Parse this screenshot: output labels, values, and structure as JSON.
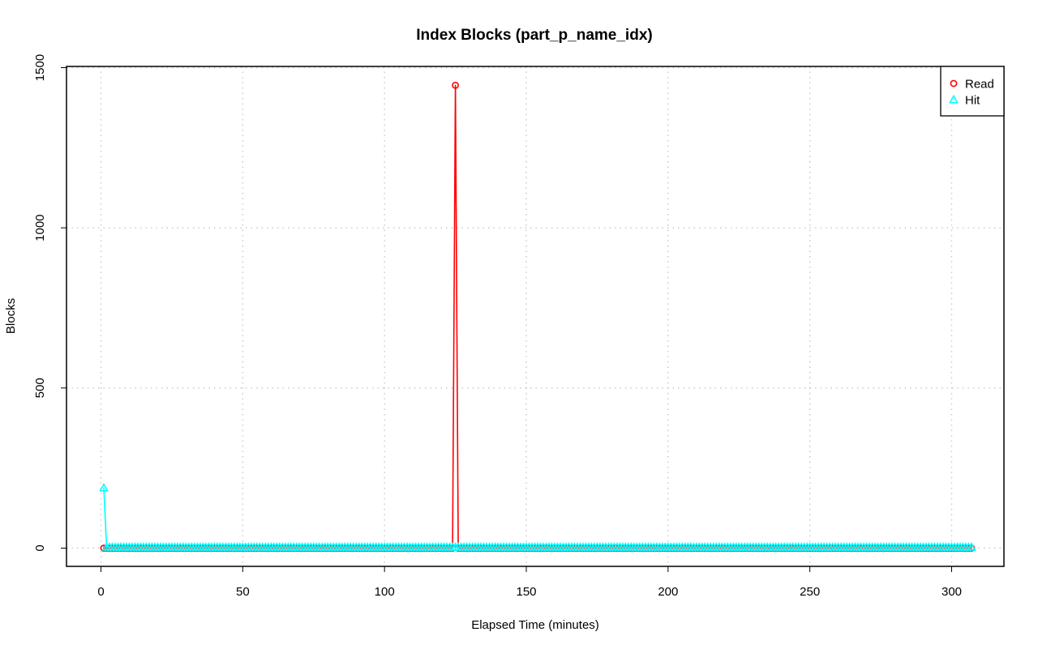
{
  "chart_data": {
    "type": "line",
    "title": "Index Blocks (part_p_name_idx)",
    "xlabel": "Elapsed Time (minutes)",
    "ylabel": "Blocks",
    "xlim": [
      0,
      310
    ],
    "ylim": [
      0,
      1500
    ],
    "x_ticks": [
      0,
      50,
      100,
      150,
      200,
      250,
      300
    ],
    "y_ticks": [
      0,
      500,
      1000,
      1500
    ],
    "grid": true,
    "legend_position": "top-right",
    "x": {
      "start": 1,
      "end": 307,
      "step": 1
    },
    "series": [
      {
        "name": "Read",
        "color": "#ff0000",
        "marker": "circle",
        "default_value": 0,
        "overrides": [
          {
            "x": 125,
            "value": 1445
          }
        ]
      },
      {
        "name": "Hit",
        "color": "#00ffff",
        "marker": "triangle",
        "default_value": 3,
        "overrides": [
          {
            "x": 1,
            "value": 188
          }
        ]
      }
    ]
  }
}
